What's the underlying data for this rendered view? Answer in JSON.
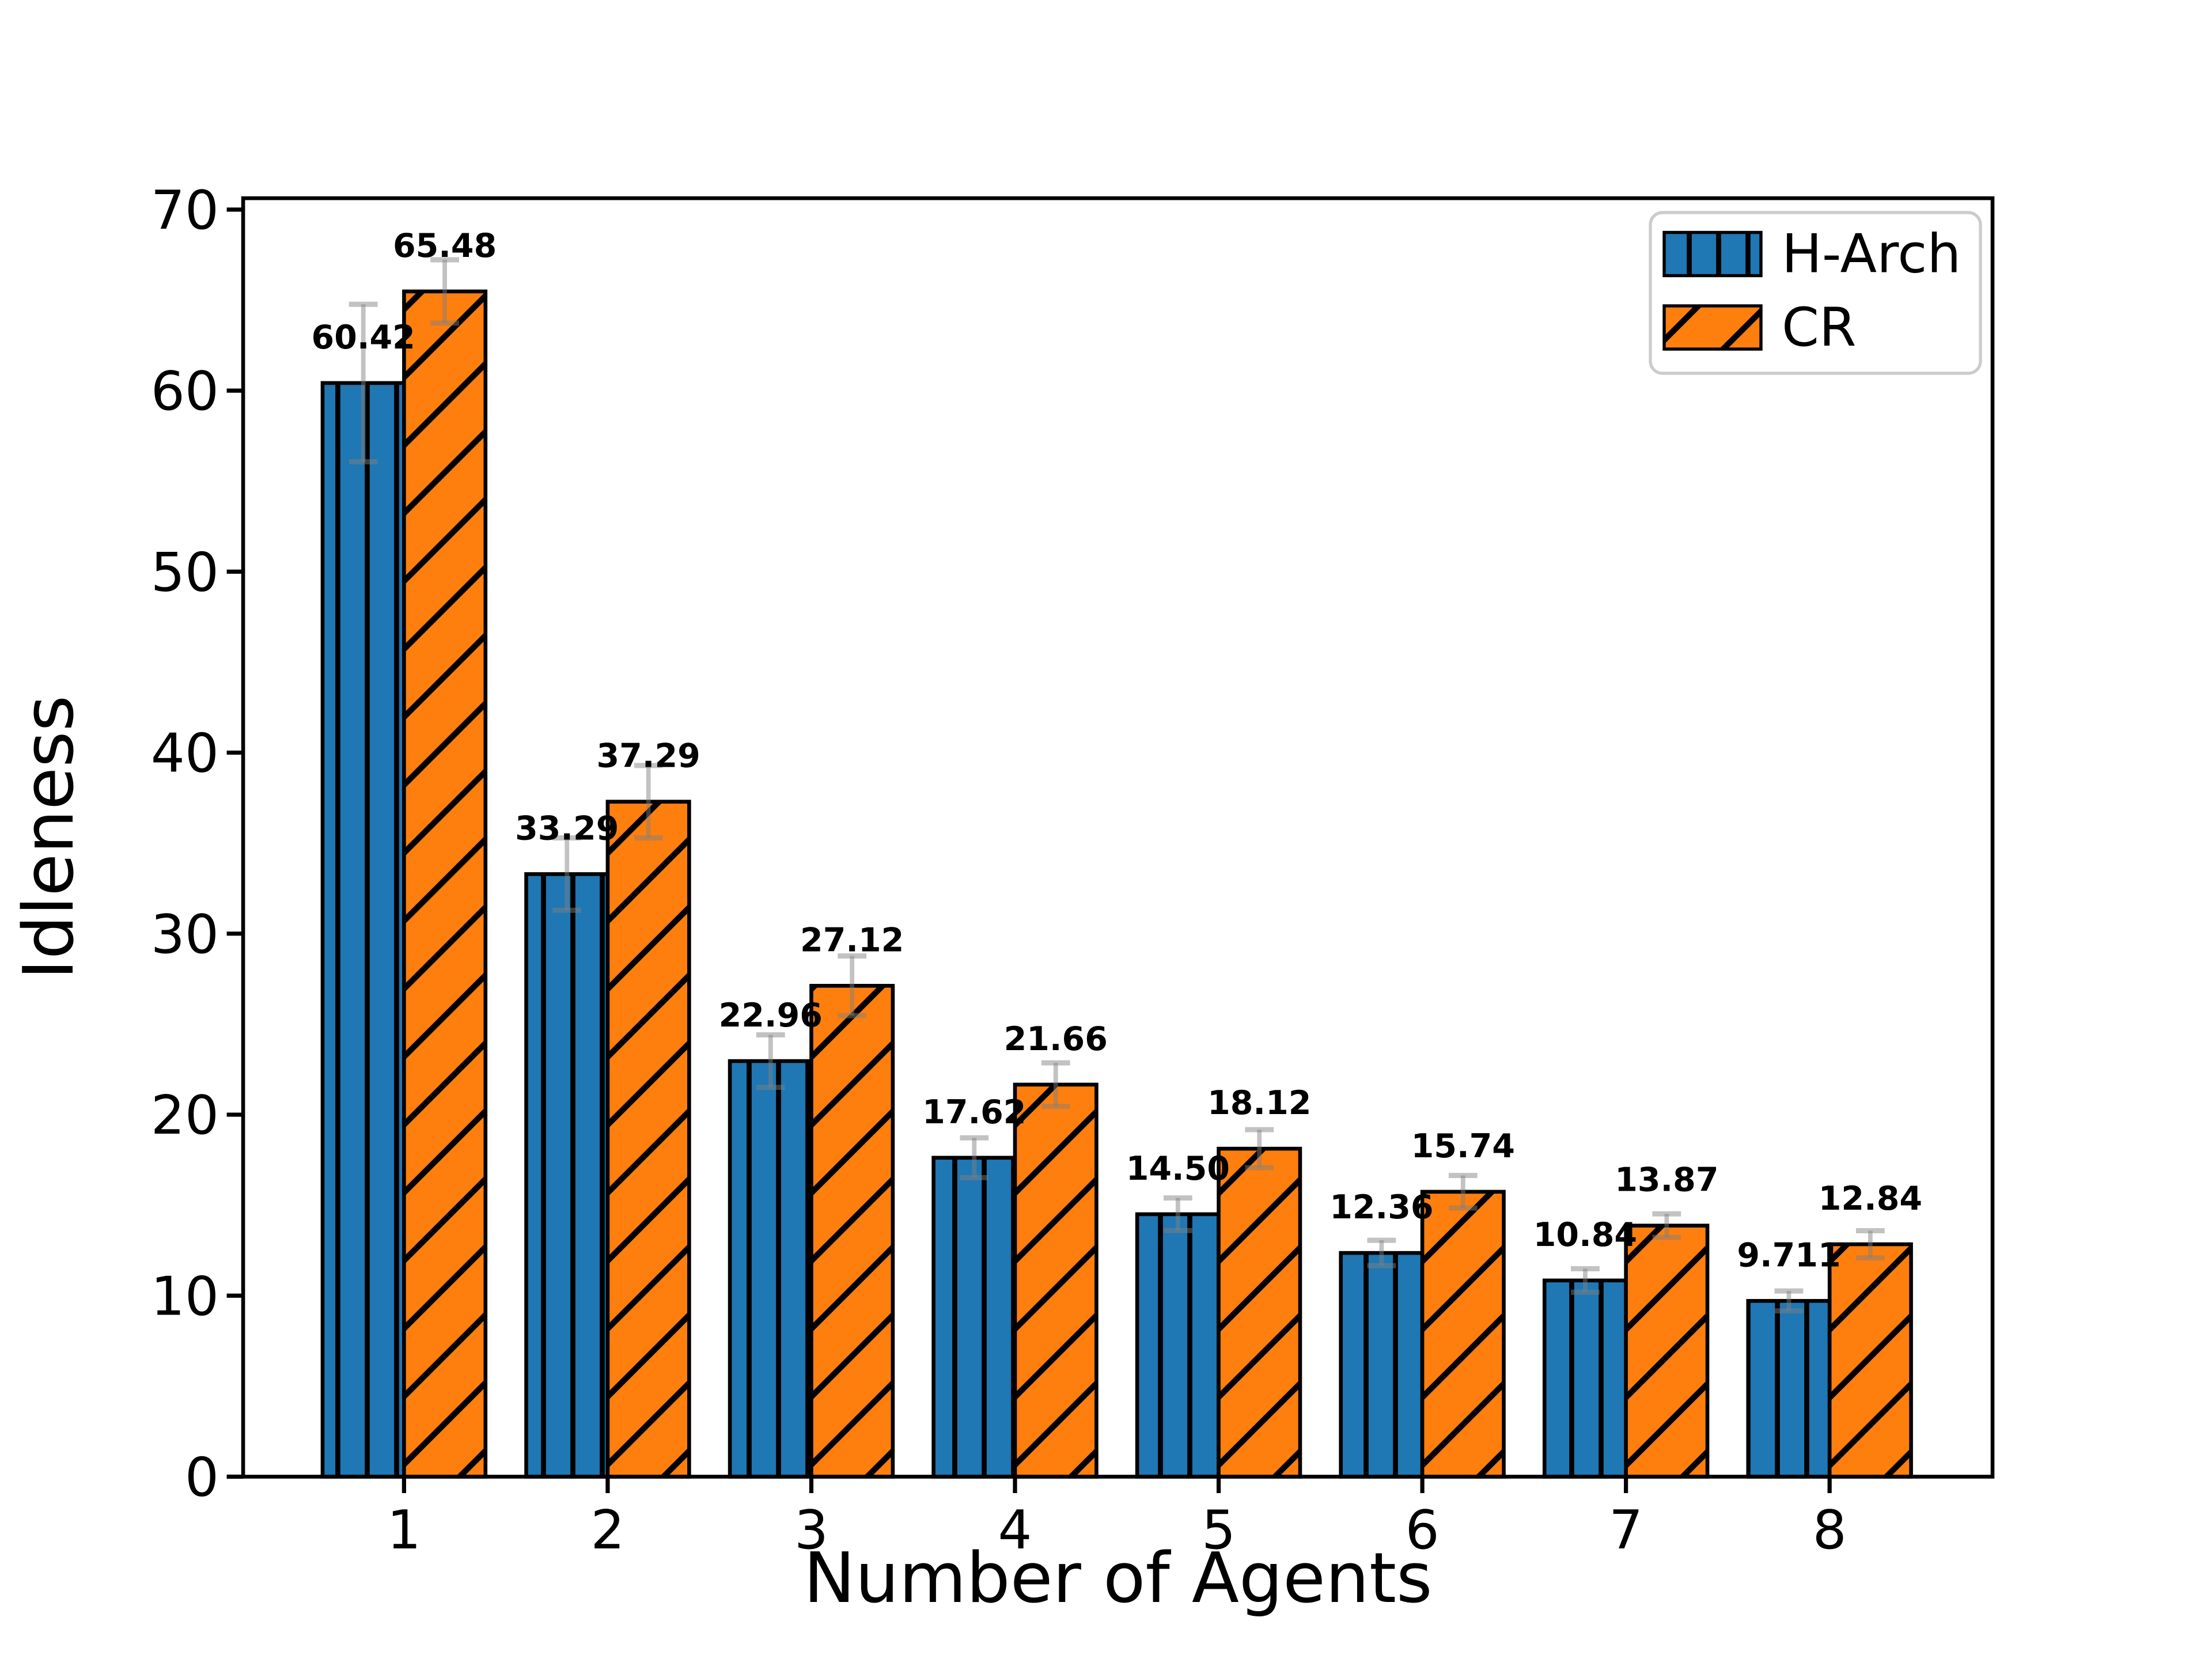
{
  "chart_data": {
    "type": "bar",
    "title": "",
    "xlabel": "Number of Agents",
    "ylabel": "Idleness",
    "categories": [
      1,
      2,
      3,
      4,
      5,
      6,
      7,
      8
    ],
    "series": [
      {
        "name": "H-Arch",
        "color": "#1f77b4",
        "hatch": "vertical",
        "values": [
          60.42,
          33.29,
          22.96,
          17.62,
          14.5,
          12.36,
          10.84,
          9.711
        ],
        "labels": [
          "60.42",
          "33.29",
          "22.96",
          "17.62",
          "14.50",
          "12.36",
          "10.84",
          "9.711"
        ],
        "errors": [
          4.35,
          2.0,
          1.45,
          1.1,
          0.9,
          0.7,
          0.65,
          0.55
        ]
      },
      {
        "name": "CR",
        "color": "#ff7f0e",
        "hatch": "diagonal",
        "values": [
          65.48,
          37.29,
          27.12,
          21.66,
          18.12,
          15.74,
          13.87,
          12.84
        ],
        "labels": [
          "65.48",
          "37.29",
          "27.12",
          "21.66",
          "18.12",
          "15.74",
          "13.87",
          "12.84"
        ],
        "errors": [
          1.75,
          2.0,
          1.65,
          1.2,
          1.05,
          0.9,
          0.65,
          0.75
        ]
      }
    ],
    "yticks": [
      0,
      10,
      20,
      30,
      40,
      50,
      60,
      70
    ],
    "ylim": [
      0,
      70.63
    ],
    "xlim": [
      0.21,
      8.8
    ],
    "bar_width_units": 0.4,
    "grid": false,
    "legend_position": "upper-right",
    "hatch_color": "#000000",
    "bar_edge_color": "#000000",
    "error_bar_color": "rgba(128,128,128,0.48)",
    "axis_color": "#000000",
    "legend_border_color": "#cccccc"
  }
}
